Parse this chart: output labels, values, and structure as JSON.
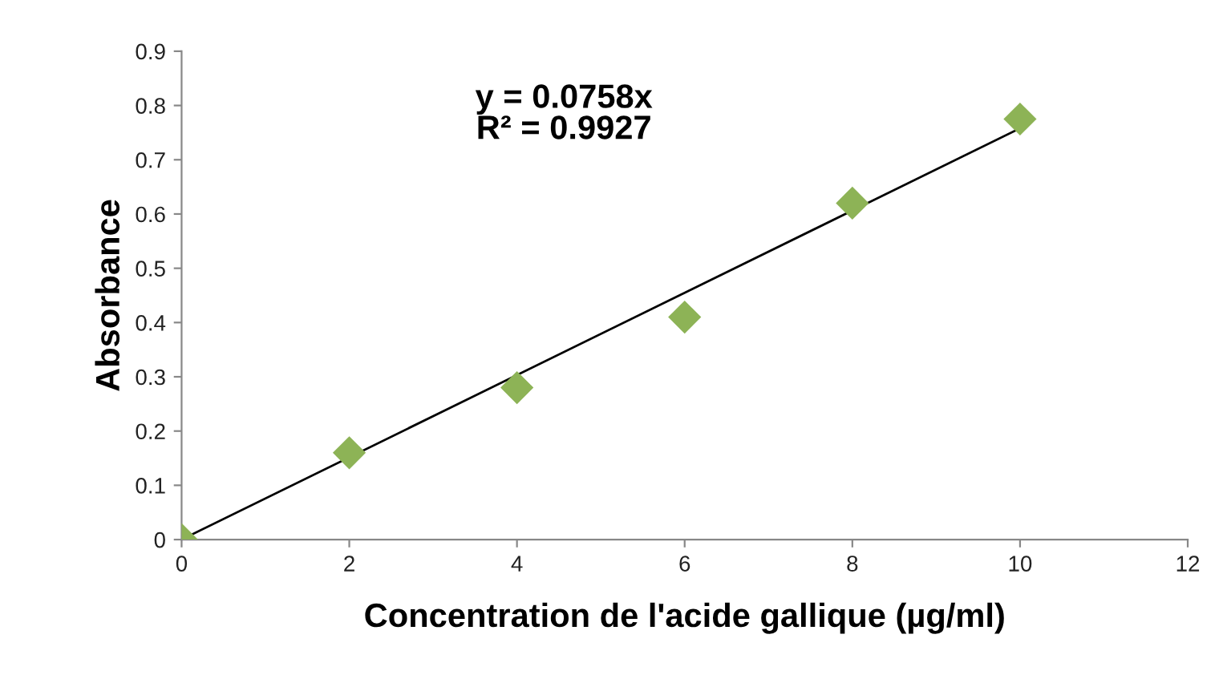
{
  "chart_data": {
    "type": "scatter",
    "xlabel": "Concentration de l'acide gallique (µg/ml)",
    "ylabel": "Absorbance",
    "x": [
      0,
      2,
      4,
      6,
      8,
      10
    ],
    "marker": "diamond",
    "grid": false,
    "legend": false,
    "series": [
      {
        "color": "#8db356",
        "values": [
          0,
          0.16,
          0.28,
          0.41,
          0.62,
          0.775
        ]
      },
      {
        "type": "line",
        "color": "#000000",
        "x": [
          0,
          10
        ],
        "values": [
          0,
          0.758
        ],
        "marker": "none",
        "line_style": "solid"
      }
    ],
    "annotations": [
      "y = 0.0758x\nR² = 0.9927"
    ],
    "xlim": [
      0,
      12
    ],
    "xticks": [
      0,
      2,
      4,
      6,
      8,
      10,
      12
    ],
    "ylim": [
      0,
      0.9
    ],
    "yticks": [
      0,
      0.1,
      0.2,
      0.3,
      0.4,
      0.5,
      0.6,
      0.7,
      0.8,
      0.9
    ]
  }
}
